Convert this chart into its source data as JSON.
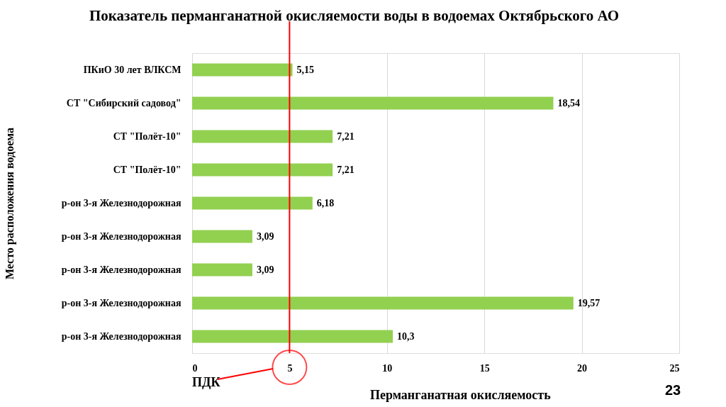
{
  "chart_data": {
    "type": "bar",
    "orientation": "horizontal",
    "title": "Показатель перманганатной окисляемости воды в водоемах Октябрьского АО",
    "xlabel": "Перманганатная окисляемость",
    "ylabel": "Место расположения водоема",
    "categories": [
      "ПКиО 30 лет ВЛКСМ",
      "СТ \"Сибирский садовод\"",
      "СТ \"Полёт-10\"",
      "СТ \"Полёт-10\"",
      "р-он 3-я Железнодорожная",
      "р-он 3-я Железнодорожная",
      "р-он 3-я Железнодорожная",
      "р-он 3-я Железнодорожная",
      "р-он 3-я Железнодорожная"
    ],
    "values": [
      5.15,
      18.54,
      7.21,
      7.21,
      6.18,
      3.09,
      3.09,
      19.57,
      10.3
    ],
    "value_labels": [
      "5,15",
      "18,54",
      "7,21",
      "7,21",
      "6,18",
      "3,09",
      "3,09",
      "19,57",
      "10,3"
    ],
    "color": "#92d050",
    "xlim": [
      0,
      25
    ],
    "xticks": [
      0,
      5,
      10,
      15,
      20,
      25
    ],
    "grid": "x",
    "ref_lines": [
      {
        "axis": "x",
        "value": 5,
        "label": "ПДК",
        "color": "#ff0000"
      }
    ],
    "annotations": [
      "23"
    ]
  }
}
